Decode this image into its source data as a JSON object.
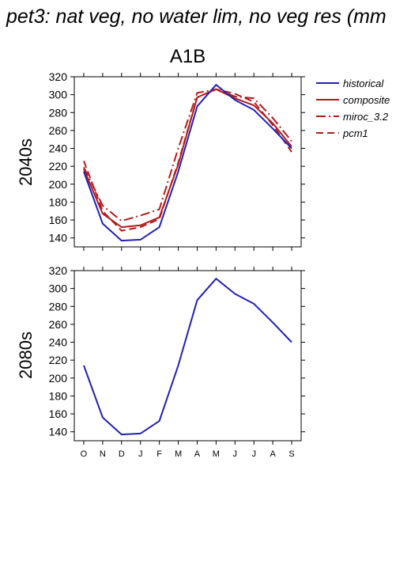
{
  "figure_title": "pet3: nat veg, no water lim, no veg res (mm",
  "scenario": "A1B",
  "colors": {
    "historical": "#2121b3",
    "projection": "#b31b1b"
  },
  "legend": [
    {
      "label": "historical",
      "color": "#2121b3",
      "dash": "solid"
    },
    {
      "label": "composite",
      "color": "#b31b1b",
      "dash": "solid"
    },
    {
      "label": "miroc_3.2",
      "color": "#b31b1b",
      "dash": "dashdot"
    },
    {
      "label": "pcm1",
      "color": "#b31b1b",
      "dash": "dashed"
    }
  ],
  "chart_data": [
    {
      "type": "line",
      "title": "A1B",
      "ylabel": "2040s",
      "categories": [
        "O",
        "N",
        "D",
        "J",
        "F",
        "M",
        "A",
        "M",
        "J",
        "J",
        "A",
        "S"
      ],
      "ylim": [
        130,
        320
      ],
      "yticks": [
        140,
        160,
        180,
        200,
        220,
        240,
        260,
        280,
        300,
        320
      ],
      "series": [
        {
          "name": "historical",
          "values": [
            214,
            156,
            137,
            138,
            152,
            214,
            287,
            311,
            294,
            283,
            262,
            240
          ]
        },
        {
          "name": "composite",
          "values": [
            217,
            167,
            152,
            154,
            163,
            222,
            297,
            306,
            296,
            288,
            268,
            242
          ]
        },
        {
          "name": "miroc_3.2",
          "values": [
            219,
            176,
            159,
            165,
            172,
            240,
            302,
            306,
            298,
            296,
            274,
            248
          ]
        },
        {
          "name": "pcm1",
          "values": [
            226,
            170,
            148,
            152,
            161,
            224,
            297,
            306,
            301,
            292,
            266,
            236
          ]
        }
      ]
    },
    {
      "type": "line",
      "ylabel": "2080s",
      "categories": [
        "O",
        "N",
        "D",
        "J",
        "F",
        "M",
        "A",
        "M",
        "J",
        "J",
        "A",
        "S"
      ],
      "ylim": [
        130,
        320
      ],
      "yticks": [
        140,
        160,
        180,
        200,
        220,
        240,
        260,
        280,
        300,
        320
      ],
      "series": [
        {
          "name": "historical",
          "values": [
            214,
            156,
            137,
            138,
            152,
            214,
            287,
            311,
            294,
            283,
            262,
            240
          ]
        }
      ]
    }
  ]
}
